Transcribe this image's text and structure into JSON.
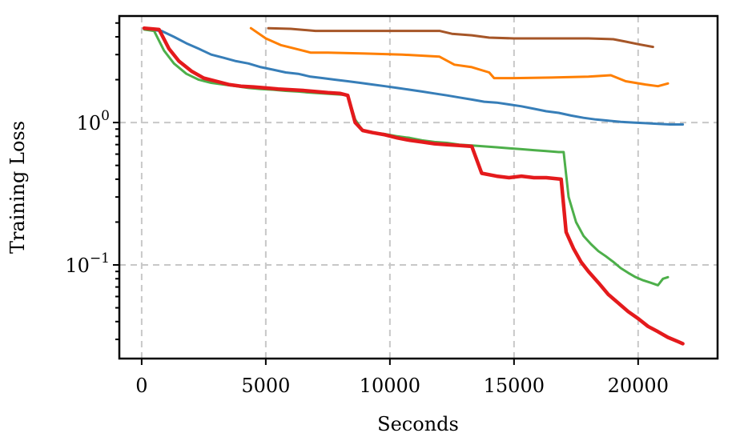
{
  "chart_data": {
    "type": "line",
    "xlabel": "Seconds",
    "ylabel": "Training Loss",
    "xlim": [
      -900,
      23200
    ],
    "ylim": [
      0.022,
      5.6
    ],
    "yscale": "log",
    "grid": true,
    "xticks": [
      {
        "value": 0,
        "label": "0"
      },
      {
        "value": 5000,
        "label": "5000"
      },
      {
        "value": 10000,
        "label": "10000"
      },
      {
        "value": 15000,
        "label": "15000"
      },
      {
        "value": 20000,
        "label": "20000"
      }
    ],
    "yticks": [
      {
        "value": 1,
        "base": "10",
        "exp": "0"
      },
      {
        "value": 0.1,
        "base": "10",
        "exp": "−1"
      }
    ],
    "series": [
      {
        "color": "#377eb8",
        "width": 3,
        "x": [
          200,
          800,
          1300,
          1800,
          2300,
          2800,
          3300,
          3800,
          4300,
          4800,
          5300,
          5800,
          6300,
          6800,
          7300,
          7800,
          8300,
          8800,
          9300,
          9800,
          10300,
          10800,
          11300,
          11800,
          12300,
          12800,
          13300,
          13800,
          14300,
          14800,
          15300,
          15800,
          16300,
          16800,
          17300,
          17800,
          18300,
          18800,
          19300,
          19800,
          20300,
          20800,
          21300,
          21800
        ],
        "y": [
          4.5,
          4.4,
          4.0,
          3.6,
          3.3,
          3.0,
          2.85,
          2.7,
          2.6,
          2.45,
          2.35,
          2.25,
          2.2,
          2.1,
          2.05,
          2.0,
          1.95,
          1.9,
          1.85,
          1.8,
          1.75,
          1.7,
          1.65,
          1.6,
          1.55,
          1.5,
          1.45,
          1.4,
          1.38,
          1.34,
          1.3,
          1.25,
          1.2,
          1.17,
          1.12,
          1.08,
          1.05,
          1.03,
          1.01,
          1.0,
          0.99,
          0.98,
          0.97,
          0.97
        ]
      },
      {
        "color": "#ff7f00",
        "width": 3,
        "x": [
          4400,
          5000,
          5600,
          6200,
          6800,
          7500,
          9000,
          10500,
          12000,
          12600,
          13300,
          14000,
          14200,
          15000,
          16500,
          18000,
          18900,
          19500,
          20300,
          20800,
          21200
        ],
        "y": [
          4.6,
          3.9,
          3.5,
          3.3,
          3.1,
          3.1,
          3.05,
          3.0,
          2.9,
          2.55,
          2.45,
          2.25,
          2.05,
          2.05,
          2.07,
          2.1,
          2.15,
          1.95,
          1.85,
          1.8,
          1.88
        ]
      },
      {
        "color": "#a65628",
        "width": 3,
        "x": [
          5100,
          6000,
          7000,
          8000,
          9000,
          10000,
          11000,
          12000,
          12500,
          13300,
          14000,
          15000,
          16000,
          17000,
          18000,
          19000,
          19500,
          20000,
          20600
        ],
        "y": [
          4.6,
          4.55,
          4.4,
          4.4,
          4.4,
          4.4,
          4.4,
          4.4,
          4.2,
          4.1,
          3.95,
          3.9,
          3.9,
          3.9,
          3.9,
          3.85,
          3.7,
          3.55,
          3.4
        ]
      },
      {
        "color": "#4daf4a",
        "width": 3,
        "x": [
          100,
          500,
          900,
          1300,
          1800,
          2300,
          2800,
          3300,
          3800,
          4300,
          4800,
          5300,
          5800,
          6300,
          6800,
          7300,
          7800,
          8300,
          8600,
          8900,
          9300,
          9800,
          10300,
          10800,
          11300,
          11800,
          12300,
          12800,
          13300,
          13800,
          14300,
          14800,
          15300,
          15800,
          16300,
          16800,
          17000,
          17200,
          17500,
          17800,
          18100,
          18400,
          18700,
          19000,
          19300,
          19600,
          19900,
          20200,
          20500,
          20800,
          21000,
          21200
        ],
        "y": [
          4.5,
          4.4,
          3.2,
          2.6,
          2.2,
          2.0,
          1.9,
          1.85,
          1.8,
          1.75,
          1.72,
          1.7,
          1.67,
          1.65,
          1.62,
          1.6,
          1.58,
          1.56,
          1.05,
          0.88,
          0.85,
          0.83,
          0.8,
          0.78,
          0.75,
          0.73,
          0.72,
          0.7,
          0.69,
          0.68,
          0.67,
          0.66,
          0.65,
          0.64,
          0.63,
          0.62,
          0.62,
          0.3,
          0.2,
          0.16,
          0.14,
          0.125,
          0.115,
          0.105,
          0.095,
          0.088,
          0.082,
          0.078,
          0.075,
          0.072,
          0.08,
          0.082
        ]
      },
      {
        "color": "#e41a1c",
        "width": 4.5,
        "x": [
          100,
          700,
          1100,
          1500,
          2000,
          2500,
          3000,
          3500,
          4000,
          4500,
          5000,
          5500,
          6000,
          6500,
          7000,
          7500,
          8000,
          8300,
          8600,
          8900,
          9300,
          9800,
          10300,
          10800,
          11300,
          11800,
          12300,
          12800,
          13300,
          13700,
          14300,
          14800,
          15300,
          15800,
          16300,
          16900,
          17100,
          17400,
          17700,
          18000,
          18400,
          18800,
          19200,
          19600,
          20000,
          20400,
          20800,
          21200,
          21600,
          21800
        ],
        "y": [
          4.6,
          4.5,
          3.3,
          2.7,
          2.3,
          2.05,
          1.95,
          1.85,
          1.8,
          1.78,
          1.75,
          1.72,
          1.7,
          1.68,
          1.65,
          1.62,
          1.6,
          1.55,
          1.0,
          0.88,
          0.85,
          0.82,
          0.78,
          0.75,
          0.73,
          0.71,
          0.7,
          0.69,
          0.68,
          0.44,
          0.42,
          0.41,
          0.42,
          0.41,
          0.41,
          0.4,
          0.17,
          0.13,
          0.105,
          0.09,
          0.075,
          0.062,
          0.054,
          0.047,
          0.042,
          0.037,
          0.034,
          0.031,
          0.029,
          0.028
        ]
      }
    ]
  }
}
